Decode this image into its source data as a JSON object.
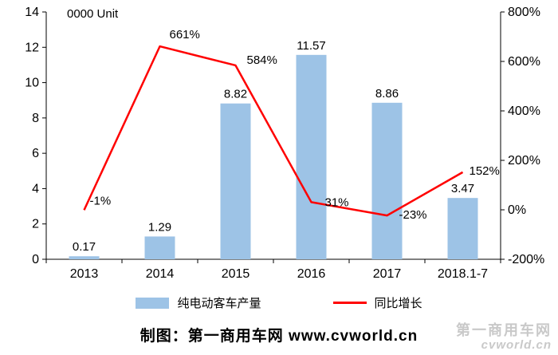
{
  "chart_data": {
    "type": "bar",
    "categories": [
      "2013",
      "2014",
      "2015",
      "2016",
      "2017",
      "2018.1-7"
    ],
    "series": [
      {
        "name": "纯电动客车产量",
        "type": "bar",
        "axis": "left",
        "color": "#9DC3E6",
        "values": [
          0.17,
          1.29,
          8.82,
          11.57,
          8.86,
          3.47
        ],
        "labels": [
          "0.17",
          "1.29",
          "8.82",
          "11.57",
          "8.86",
          "3.47"
        ]
      },
      {
        "name": "同比增长",
        "type": "line",
        "axis": "right",
        "color": "#FF0000",
        "values": [
          -1,
          661,
          584,
          31,
          -23,
          152
        ],
        "labels": [
          "-1%",
          "661%",
          "584%",
          "31%",
          "-23%",
          "152%"
        ]
      }
    ],
    "title": "",
    "unit_label": "0000 Unit",
    "xlabel": "",
    "ylabel_left": "0000 Unit",
    "left_axis": {
      "min": 0,
      "max": 14,
      "ticks": [
        0,
        2,
        4,
        6,
        8,
        10,
        12,
        14
      ]
    },
    "right_axis": {
      "min": -200,
      "max": 800,
      "ticks": [
        -200,
        0,
        200,
        400,
        600,
        800
      ],
      "suffix": "%"
    },
    "grid": false,
    "legend_position": "bottom"
  },
  "legend": {
    "items": [
      {
        "label": "纯电动客车产量",
        "type": "bar",
        "color": "#9DC3E6"
      },
      {
        "label": "同比增长",
        "type": "line",
        "color": "#FF0000"
      }
    ]
  },
  "footer": {
    "credit": "制图：第一商用车网 www.cvworld.cn"
  },
  "watermark": {
    "line1": "第一商用车网",
    "line2": "cvworld.cn"
  }
}
